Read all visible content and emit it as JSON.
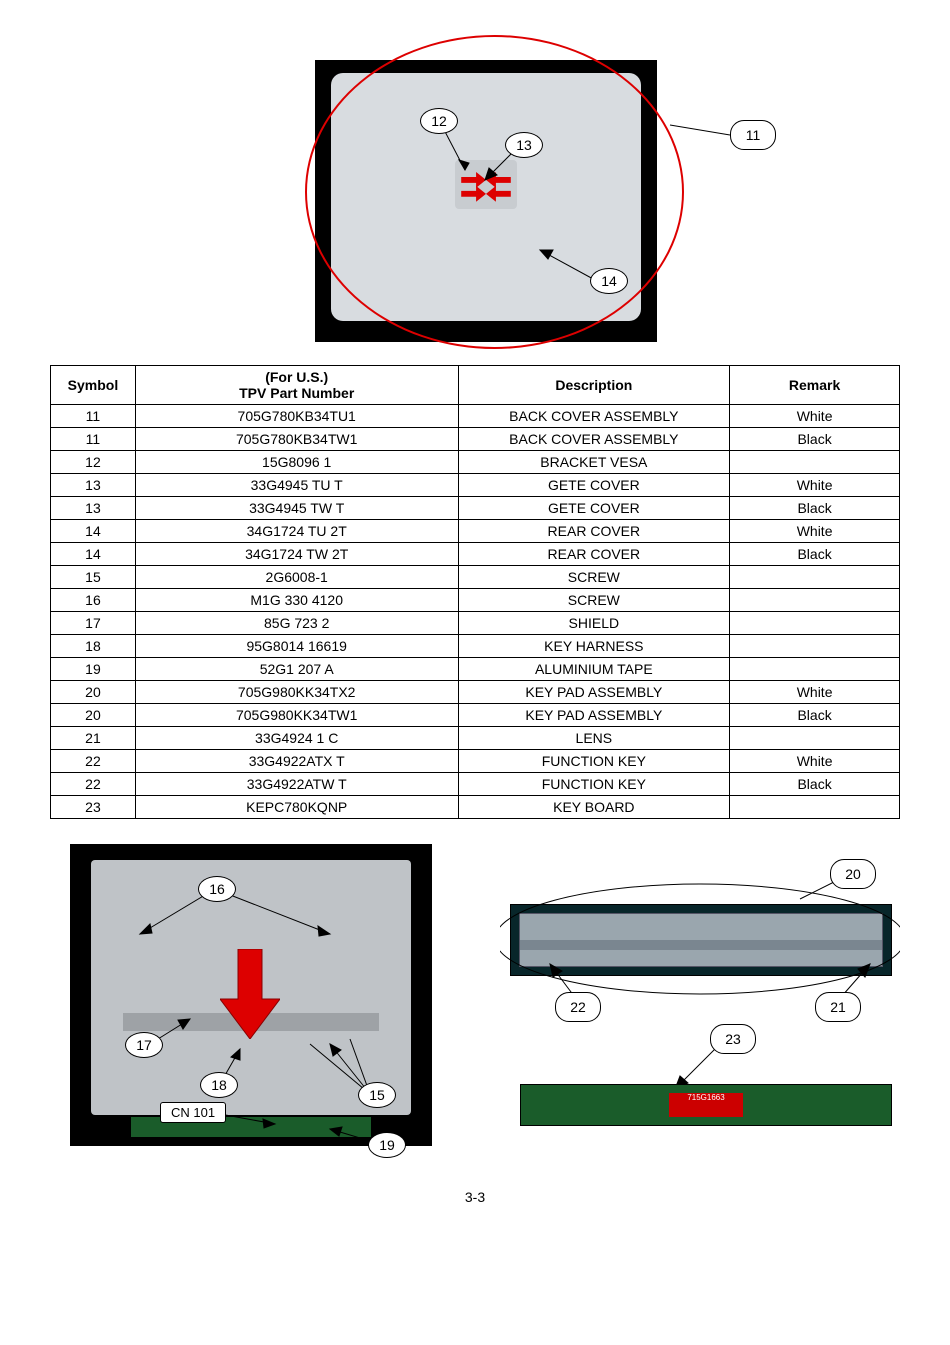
{
  "callouts_top": {
    "c11": "11",
    "c12": "12",
    "c13": "13",
    "c14": "14"
  },
  "callouts_bottom_left": {
    "c15": "15",
    "c16": "16",
    "c17": "17",
    "c18": "18",
    "c19": "19",
    "cn": "CN 101"
  },
  "callouts_bottom_right": {
    "c20": "20",
    "c21": "21",
    "c22": "22",
    "c23": "23"
  },
  "table": {
    "headers": {
      "symbol": "Symbol",
      "part": "(For U.S.)\nTPV Part Number",
      "desc": "Description",
      "remark": "Remark"
    },
    "rows": [
      {
        "sym": "11",
        "part": "705G780KB34TU1",
        "desc": "BACK COVER ASSEMBLY",
        "remark": "White"
      },
      {
        "sym": "11",
        "part": "705G780KB34TW1",
        "desc": "BACK COVER ASSEMBLY",
        "remark": "Black"
      },
      {
        "sym": "12",
        "part": "15G8096  1",
        "desc": "BRACKET VESA",
        "remark": ""
      },
      {
        "sym": "13",
        "part": "33G4945 TU  T",
        "desc": "GETE COVER",
        "remark": "White"
      },
      {
        "sym": "13",
        "part": "33G4945 TW  T",
        "desc": "GETE COVER",
        "remark": "Black"
      },
      {
        "sym": "14",
        "part": "34G1724 TU 2T",
        "desc": "REAR COVER",
        "remark": "White"
      },
      {
        "sym": "14",
        "part": "34G1724 TW 2T",
        "desc": "REAR COVER",
        "remark": "Black"
      },
      {
        "sym": "15",
        "part": "2G6008-1",
        "desc": "SCREW",
        "remark": ""
      },
      {
        "sym": "16",
        "part": "M1G 330  4120",
        "desc": "SCREW",
        "remark": ""
      },
      {
        "sym": "17",
        "part": "85G 723  2",
        "desc": "SHIELD",
        "remark": ""
      },
      {
        "sym": "18",
        "part": "95G8014 16619",
        "desc": "KEY HARNESS",
        "remark": ""
      },
      {
        "sym": "19",
        "part": "52G1 207 A",
        "desc": "ALUMINIUM TAPE",
        "remark": ""
      },
      {
        "sym": "20",
        "part": "705G980KK34TX2",
        "desc": "KEY PAD ASSEMBLY",
        "remark": "White"
      },
      {
        "sym": "20",
        "part": "705G980KK34TW1",
        "desc": "KEY PAD ASSEMBLY",
        "remark": "Black"
      },
      {
        "sym": "21",
        "part": "33G4924  1  C",
        "desc": "LENS",
        "remark": ""
      },
      {
        "sym": "22",
        "part": "33G4922ATX  T",
        "desc": "FUNCTION KEY",
        "remark": "White"
      },
      {
        "sym": "22",
        "part": "33G4922ATW  T",
        "desc": "FUNCTION KEY",
        "remark": "Black"
      },
      {
        "sym": "23",
        "part": "KEPC780KQNP",
        "desc": "KEY BOARD",
        "remark": ""
      }
    ]
  },
  "page_number": "3-3",
  "colors": {
    "red": "#d00000",
    "green_pcb": "#1a5c2a",
    "plastic": "#d8dce0",
    "metal": "#bfc3c7"
  }
}
